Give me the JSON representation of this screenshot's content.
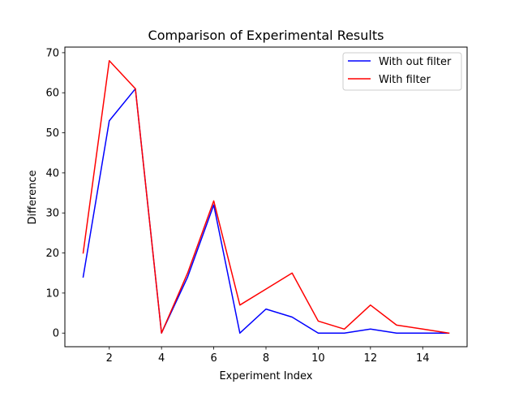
{
  "chart_data": {
    "type": "line",
    "title": "Comparison of Experimental Results",
    "xlabel": "Experiment Index",
    "ylabel": "Difference",
    "x": [
      1,
      2,
      3,
      4,
      5,
      6,
      7,
      8,
      9,
      10,
      11,
      12,
      13,
      14,
      15
    ],
    "xlim": [
      0.3,
      15.7
    ],
    "ylim": [
      -3.4,
      71.4
    ],
    "xticks": [
      2,
      4,
      6,
      8,
      10,
      12,
      14
    ],
    "yticks": [
      0,
      10,
      20,
      30,
      40,
      50,
      60,
      70
    ],
    "grid": false,
    "legend_position": "top-right",
    "series": [
      {
        "name": "With out filter",
        "color": "#0000ff",
        "values": [
          14,
          53,
          61,
          0,
          14,
          32,
          0,
          6,
          4,
          0,
          0,
          1,
          0,
          0,
          0
        ]
      },
      {
        "name": "With filter",
        "color": "#ff0000",
        "values": [
          20,
          68,
          61,
          0,
          15,
          33,
          7,
          11,
          15,
          3,
          1,
          7,
          2,
          1,
          0
        ]
      }
    ]
  }
}
